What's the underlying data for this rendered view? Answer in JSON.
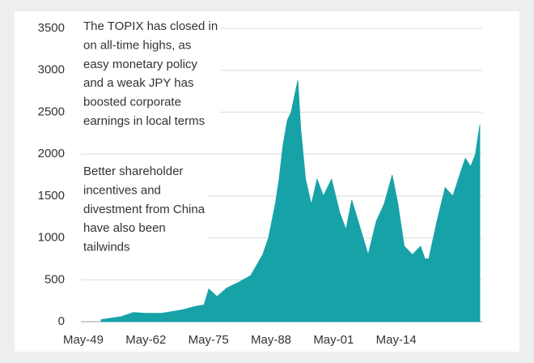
{
  "chart_data": {
    "type": "area",
    "color": "#17a2a8",
    "grid": true,
    "annotations": [
      [
        "The TOPIX has closed in",
        "on all-time highs, as",
        "easy monetary policy",
        "and a weak JPY has",
        "boosted corporate",
        "earnings in local terms"
      ],
      [
        "Better shareholder",
        "incentives and",
        "divestment from China",
        "have also been",
        "tailwinds"
      ]
    ],
    "x": [
      1953.0,
      1957.2,
      1959.7,
      1962.3,
      1965.6,
      1969.8,
      1972.4,
      1974.4,
      1975.4,
      1977.1,
      1979.1,
      1981.6,
      1984.1,
      1986.6,
      1987.8,
      1989.2,
      1990.0,
      1990.8,
      1991.7,
      1992.5,
      1993.9,
      1994.5,
      1995.5,
      1996.7,
      1997.9,
      1999.2,
      2000.9,
      2002.6,
      2003.9,
      2005.1,
      2005.9,
      2008.5,
      2010.2,
      2011.8,
      2013.5,
      2014.7,
      2016.0,
      2017.7,
      2019.4,
      2020.3,
      2021.1,
      2022.8,
      2024.5,
      2026.1,
      2027.8,
      2028.7,
      2029.8,
      2030.8,
      2031.7
    ],
    "values": [
      25,
      60,
      110,
      100,
      100,
      140,
      180,
      200,
      390,
      300,
      400,
      470,
      550,
      800,
      1000,
      1400,
      1700,
      2100,
      2400,
      2500,
      2880,
      2300,
      1700,
      1400,
      1700,
      1500,
      1700,
      1300,
      1100,
      1450,
      1300,
      800,
      1200,
      1400,
      1750,
      1400,
      900,
      800,
      900,
      750,
      750,
      1200,
      1600,
      1500,
      1800,
      1950,
      1850,
      2000,
      2350
    ],
    "xlim": [
      1948.83,
      2032.2
    ],
    "xticks": [
      {
        "value": 1949.33,
        "label": "May-49"
      },
      {
        "value": 1962.33,
        "label": "May-62"
      },
      {
        "value": 1975.33,
        "label": "May-75"
      },
      {
        "value": 1988.33,
        "label": "May-88"
      },
      {
        "value": 2001.33,
        "label": "May-01"
      },
      {
        "value": 2014.33,
        "label": "May-14"
      }
    ],
    "ylim": [
      0,
      3500
    ],
    "yticks": [
      0,
      500,
      1000,
      1500,
      2000,
      2500,
      3000,
      3500
    ]
  }
}
